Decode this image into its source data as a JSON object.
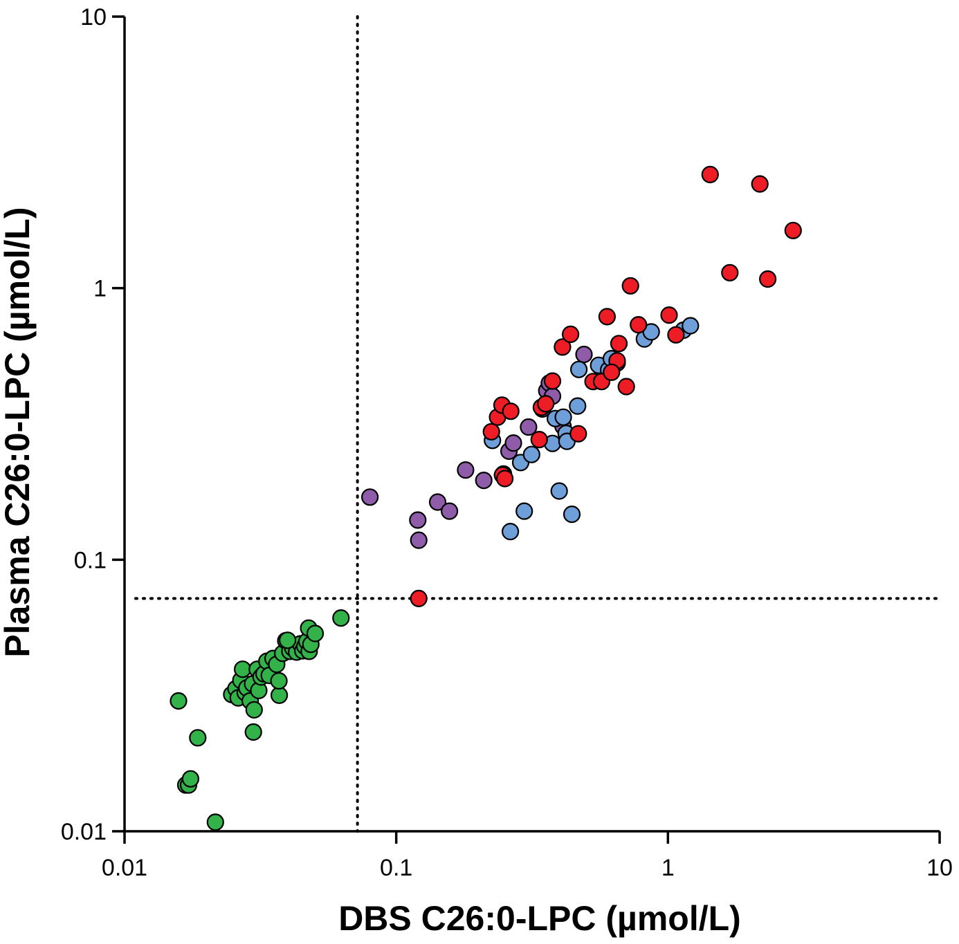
{
  "colors": {
    "green": "#33b249",
    "purple": "#8e5ca8",
    "blue": "#6f9fd8",
    "red": "#ee1c24"
  },
  "chart_data": {
    "type": "scatter",
    "title": "",
    "xlabel": "DBS C26:0-LPC (µmol/L)",
    "ylabel": "Plasma C26:0-LPC (µmol/L)",
    "xscale": "log",
    "yscale": "log",
    "xlim": [
      0.01,
      10
    ],
    "ylim": [
      0.01,
      10
    ],
    "xticks": [
      {
        "value": 0.01,
        "label": "0.01"
      },
      {
        "value": 0.1,
        "label": "0.1"
      },
      {
        "value": 1,
        "label": "1"
      },
      {
        "value": 10,
        "label": "10"
      }
    ],
    "yticks": [
      {
        "value": 0.01,
        "label": "0.01"
      },
      {
        "value": 0.1,
        "label": "0.1"
      },
      {
        "value": 1,
        "label": "1"
      },
      {
        "value": 10,
        "label": "10"
      }
    ],
    "cutoffs": {
      "x": 0.072,
      "y": 0.072
    },
    "grid": false,
    "legend": "none",
    "series": [
      {
        "name": "green",
        "color": "#33b249",
        "points": [
          [
            0.0158,
            0.0302
          ],
          [
            0.0168,
            0.0148
          ],
          [
            0.0172,
            0.0148
          ],
          [
            0.0175,
            0.0156
          ],
          [
            0.0186,
            0.0221
          ],
          [
            0.0216,
            0.0108
          ],
          [
            0.0248,
            0.0319
          ],
          [
            0.0257,
            0.0335
          ],
          [
            0.0262,
            0.031
          ],
          [
            0.0268,
            0.036
          ],
          [
            0.0272,
            0.0395
          ],
          [
            0.0278,
            0.0324
          ],
          [
            0.0282,
            0.0337
          ],
          [
            0.029,
            0.0302
          ],
          [
            0.0296,
            0.0349
          ],
          [
            0.03,
            0.028
          ],
          [
            0.0298,
            0.0232
          ],
          [
            0.0308,
            0.0395
          ],
          [
            0.0312,
            0.033
          ],
          [
            0.0318,
            0.037
          ],
          [
            0.0326,
            0.038
          ],
          [
            0.0334,
            0.0423
          ],
          [
            0.0341,
            0.0375
          ],
          [
            0.0352,
            0.0433
          ],
          [
            0.0363,
            0.0412
          ],
          [
            0.0371,
            0.0317
          ],
          [
            0.037,
            0.0358
          ],
          [
            0.0382,
            0.0452
          ],
          [
            0.0392,
            0.0503
          ],
          [
            0.0406,
            0.046
          ],
          [
            0.0416,
            0.0473
          ],
          [
            0.043,
            0.0457
          ],
          [
            0.0444,
            0.049
          ],
          [
            0.0453,
            0.0462
          ],
          [
            0.0461,
            0.048
          ],
          [
            0.0469,
            0.05
          ],
          [
            0.0478,
            0.046
          ],
          [
            0.0485,
            0.0488
          ],
          [
            0.0476,
            0.056
          ],
          [
            0.0503,
            0.0535
          ],
          [
            0.0626,
            0.061
          ],
          [
            0.0398,
            0.0505
          ]
        ]
      },
      {
        "name": "purple",
        "color": "#8e5ca8",
        "points": [
          [
            0.08,
            0.17
          ],
          [
            0.12,
            0.14
          ],
          [
            0.121,
            0.118
          ],
          [
            0.142,
            0.163
          ],
          [
            0.157,
            0.151
          ],
          [
            0.18,
            0.214
          ],
          [
            0.21,
            0.196
          ],
          [
            0.248,
            0.207
          ],
          [
            0.26,
            0.251
          ],
          [
            0.27,
            0.269
          ],
          [
            0.307,
            0.308
          ],
          [
            0.345,
            0.359
          ],
          [
            0.358,
            0.419
          ],
          [
            0.366,
            0.447
          ],
          [
            0.376,
            0.4
          ],
          [
            0.411,
            0.31
          ],
          [
            0.424,
            0.287
          ],
          [
            0.491,
            0.57
          ],
          [
            0.62,
            0.545
          ],
          [
            0.59,
            0.49
          ],
          [
            0.65,
            0.53
          ]
        ]
      },
      {
        "name": "blue",
        "color": "#6f9fd8",
        "points": [
          [
            0.226,
            0.275
          ],
          [
            0.263,
            0.127
          ],
          [
            0.287,
            0.228
          ],
          [
            0.296,
            0.151
          ],
          [
            0.315,
            0.244
          ],
          [
            0.376,
            0.268
          ],
          [
            0.385,
            0.331
          ],
          [
            0.398,
            0.179
          ],
          [
            0.412,
            0.335
          ],
          [
            0.422,
            0.292
          ],
          [
            0.425,
            0.273
          ],
          [
            0.443,
            0.147
          ],
          [
            0.465,
            0.368
          ],
          [
            0.47,
            0.502
          ],
          [
            0.556,
            0.52
          ],
          [
            0.605,
            0.5
          ],
          [
            0.619,
            0.55
          ],
          [
            0.819,
            0.65
          ],
          [
            0.868,
            0.69
          ],
          [
            1.14,
            0.7
          ],
          [
            1.21,
            0.727
          ]
        ]
      },
      {
        "name": "red",
        "color": "#ee1c24",
        "points": [
          [
            0.121,
            0.072
          ],
          [
            0.224,
            0.296
          ],
          [
            0.236,
            0.335
          ],
          [
            0.245,
            0.371
          ],
          [
            0.246,
            0.205
          ],
          [
            0.251,
            0.199
          ],
          [
            0.264,
            0.352
          ],
          [
            0.336,
            0.277
          ],
          [
            0.342,
            0.364
          ],
          [
            0.355,
            0.375
          ],
          [
            0.376,
            0.455
          ],
          [
            0.409,
            0.607
          ],
          [
            0.438,
            0.676
          ],
          [
            0.468,
            0.291
          ],
          [
            0.53,
            0.453
          ],
          [
            0.57,
            0.453
          ],
          [
            0.597,
            0.785
          ],
          [
            0.66,
            0.625
          ],
          [
            0.703,
            0.434
          ],
          [
            0.728,
            1.02
          ],
          [
            0.779,
            0.733
          ],
          [
            1.01,
            0.796
          ],
          [
            1.07,
            0.673
          ],
          [
            1.43,
            2.62
          ],
          [
            1.69,
            1.14
          ],
          [
            2.18,
            2.42
          ],
          [
            2.33,
            1.08
          ],
          [
            2.89,
            1.63
          ],
          [
            0.65,
            0.54
          ],
          [
            0.62,
            0.49
          ]
        ]
      }
    ]
  }
}
